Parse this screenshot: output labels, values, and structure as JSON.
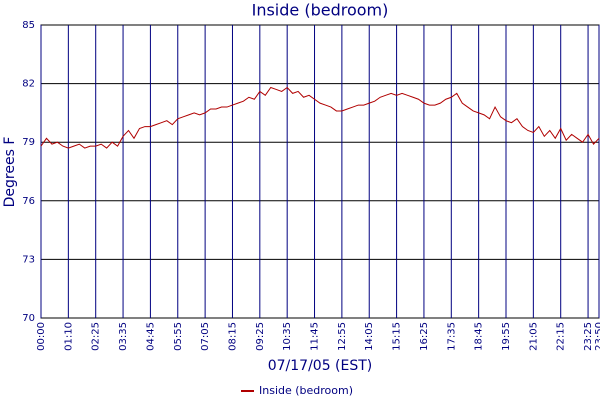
{
  "chart_data": {
    "type": "line",
    "title": "Inside (bedroom)",
    "x_label": "07/17/05 (EST)",
    "y_label": "Degrees F",
    "categories": [
      "00:00",
      null,
      null,
      null,
      null,
      "01:10",
      null,
      null,
      null,
      null,
      "02:25",
      null,
      null,
      null,
      null,
      "03:35",
      null,
      null,
      null,
      null,
      "04:45",
      null,
      null,
      null,
      null,
      "05:55",
      null,
      null,
      null,
      null,
      "07:05",
      null,
      null,
      null,
      null,
      "08:15",
      null,
      null,
      null,
      null,
      "09:25",
      null,
      null,
      null,
      null,
      "10:35",
      null,
      null,
      null,
      null,
      "11:45",
      null,
      null,
      null,
      null,
      "12:55",
      null,
      null,
      null,
      null,
      "14:05",
      null,
      null,
      null,
      null,
      "15:15",
      null,
      null,
      null,
      null,
      "16:25",
      null,
      null,
      null,
      null,
      "17:35",
      null,
      null,
      null,
      null,
      "18:45",
      null,
      null,
      null,
      null,
      "19:55",
      null,
      null,
      null,
      null,
      "21:05",
      null,
      null,
      null,
      null,
      "22:15",
      null,
      null,
      null,
      null,
      "23:25",
      null,
      "23:50"
    ],
    "series": [
      {
        "name": "Inside (bedroom)",
        "color": "#b00000",
        "values": [
          78.8,
          79.2,
          78.9,
          79.0,
          78.8,
          78.7,
          78.8,
          78.9,
          78.7,
          78.8,
          78.8,
          78.9,
          78.7,
          79.0,
          78.8,
          79.3,
          79.6,
          79.2,
          79.7,
          79.8,
          79.8,
          79.9,
          80.0,
          80.1,
          79.9,
          80.2,
          80.3,
          80.4,
          80.5,
          80.4,
          80.5,
          80.7,
          80.7,
          80.8,
          80.8,
          80.9,
          81.0,
          81.1,
          81.3,
          81.2,
          81.6,
          81.4,
          81.8,
          81.7,
          81.6,
          81.8,
          81.5,
          81.6,
          81.3,
          81.4,
          81.2,
          81.0,
          80.9,
          80.8,
          80.6,
          80.6,
          80.7,
          80.8,
          80.9,
          80.9,
          81.0,
          81.1,
          81.3,
          81.4,
          81.5,
          81.4,
          81.5,
          81.4,
          81.3,
          81.2,
          81.0,
          80.9,
          80.9,
          81.0,
          81.2,
          81.3,
          81.5,
          81.0,
          80.8,
          80.6,
          80.5,
          80.4,
          80.2,
          80.8,
          80.3,
          80.1,
          80.0,
          80.2,
          79.8,
          79.6,
          79.5,
          79.8,
          79.3,
          79.6,
          79.2,
          79.7,
          79.1,
          79.4,
          79.2,
          79.0,
          79.4,
          78.9,
          79.2
        ]
      }
    ],
    "ylim": [
      70,
      85
    ],
    "yticks": [
      70,
      73,
      76,
      79,
      82,
      85
    ],
    "grid": true
  }
}
